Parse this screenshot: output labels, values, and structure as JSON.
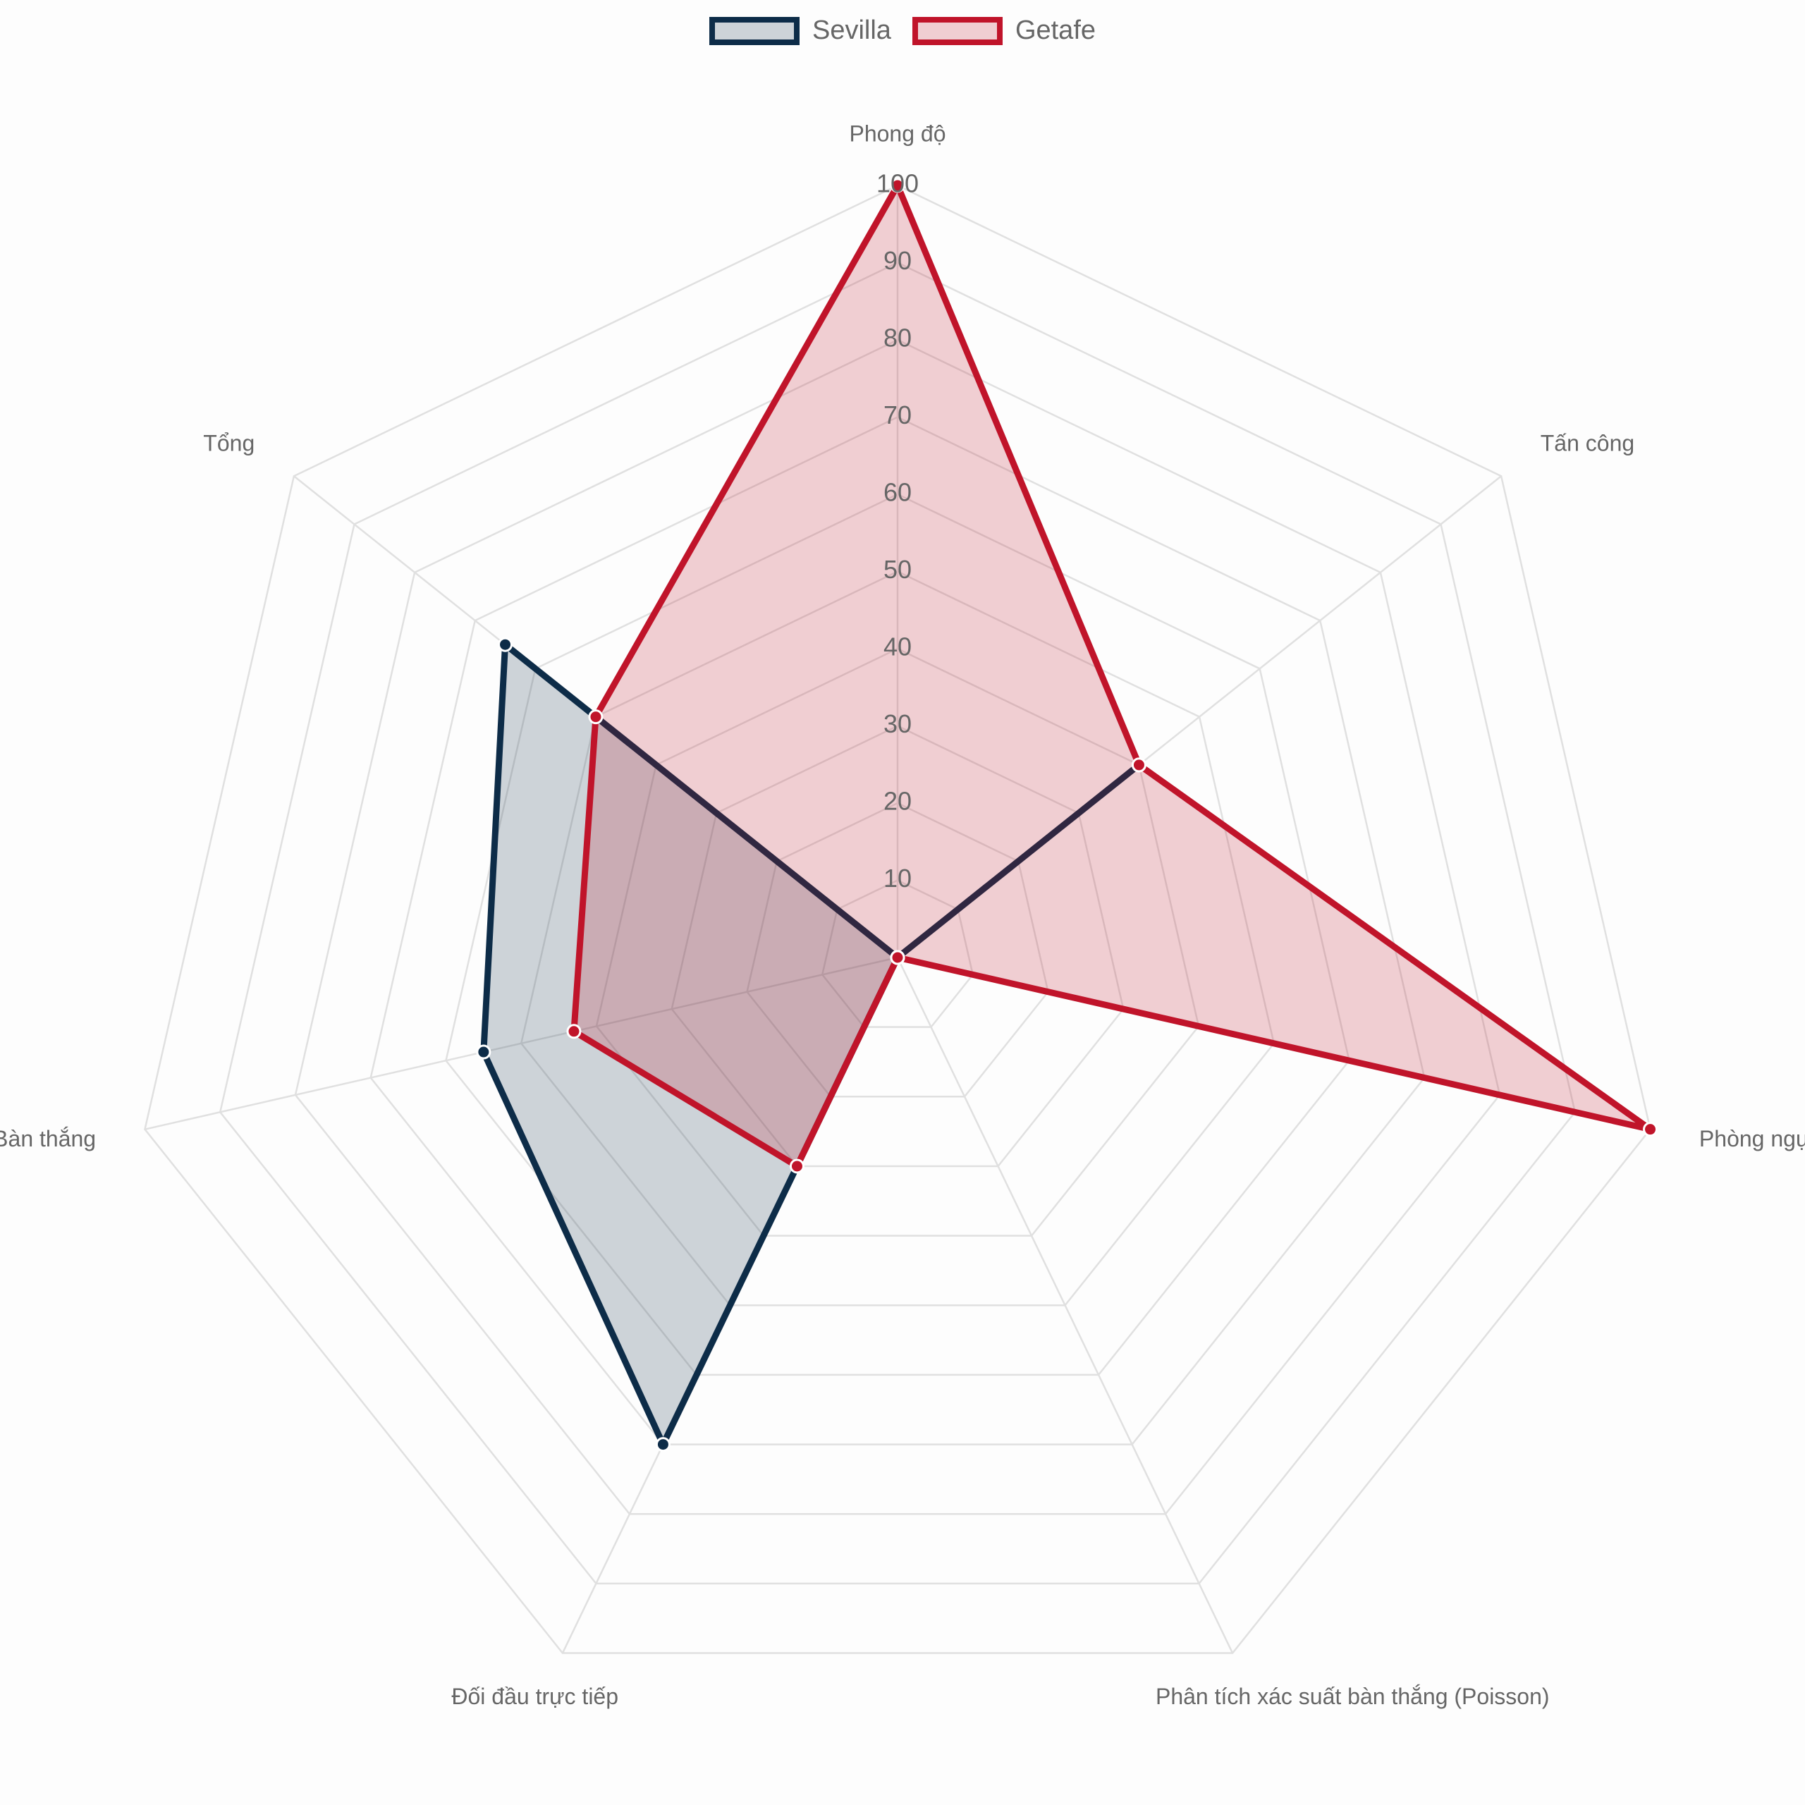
{
  "chart_data": {
    "type": "radar",
    "axes": [
      "Phong độ",
      "Tấn công",
      "Phòng ngự",
      "Phân tích xác suất bàn thắng (Poisson)",
      "Đối đầu trực tiếp",
      "Bàn thắng",
      "Tổng"
    ],
    "rlim": [
      0,
      100
    ],
    "ticks": [
      "10",
      "20",
      "30",
      "40",
      "50",
      "60",
      "70",
      "80",
      "90",
      "100"
    ],
    "grid": true,
    "legend_position": "top-center",
    "series": [
      {
        "name": "Sevilla",
        "values": [
          0,
          40,
          0,
          0,
          70,
          55,
          65
        ],
        "color": "#0d2c48",
        "fill": "rgba(13,44,72,0.2)"
      },
      {
        "name": "Getafe",
        "values": [
          100,
          40,
          100,
          0,
          30,
          43,
          50
        ],
        "color": "#c0142a",
        "fill": "rgba(192,20,42,0.2)"
      }
    ]
  }
}
